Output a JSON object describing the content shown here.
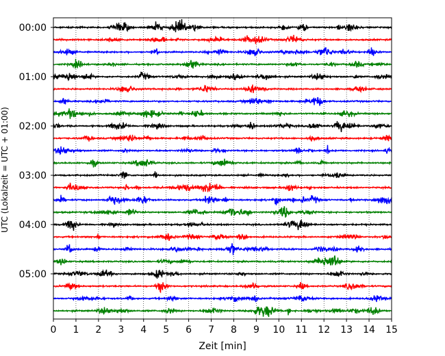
{
  "chart_data": {
    "type": "line",
    "title": "",
    "xlabel": "Zeit  [min]",
    "ylabel": "UTC (Lokalzeit = UTC + 01:00)",
    "xlim": [
      0,
      15
    ],
    "x_ticks": [
      "0",
      "1",
      "2",
      "3",
      "4",
      "5",
      "6",
      "7",
      "8",
      "9",
      "10",
      "11",
      "12",
      "13",
      "14",
      "15"
    ],
    "y_ticks": [
      "00:00",
      "01:00",
      "02:00",
      "03:00",
      "04:00",
      "05:00"
    ],
    "grid": "vertical dotted lines at each minute",
    "trace_interval_minutes": 15,
    "trace_count": 24,
    "trace_colors": [
      "#000000",
      "#ff0000",
      "#0000ff",
      "#008000"
    ],
    "traces_start_utc": [
      "00:00",
      "00:15",
      "00:30",
      "00:45",
      "01:00",
      "01:15",
      "01:30",
      "01:45",
      "02:00",
      "02:15",
      "02:30",
      "02:45",
      "03:00",
      "03:15",
      "03:30",
      "03:45",
      "04:00",
      "04:15",
      "04:30",
      "04:45",
      "05:00",
      "05:15",
      "05:30",
      "05:45"
    ]
  }
}
